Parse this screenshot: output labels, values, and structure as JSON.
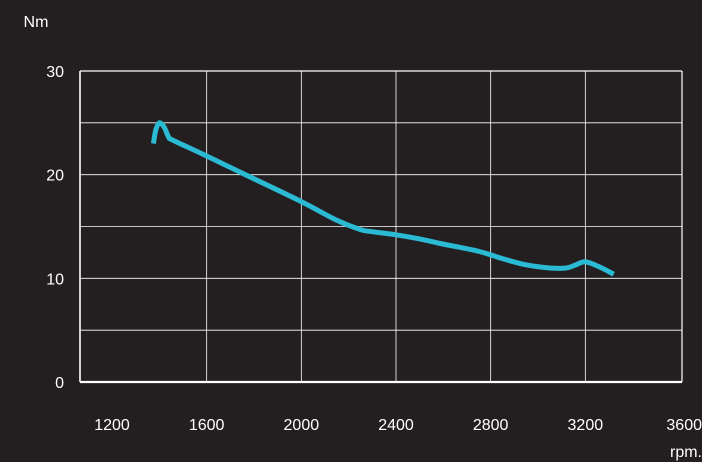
{
  "chart_data": {
    "type": "line",
    "xlabel": "rpm.",
    "ylabel": "Nm",
    "xlim": [
      1200,
      3600
    ],
    "ylim": [
      0,
      30
    ],
    "x_ticks": [
      1200,
      1600,
      2000,
      2400,
      2800,
      3200,
      3600
    ],
    "y_ticks": [
      0,
      10,
      20,
      30
    ],
    "y_gridlines": [
      0,
      5,
      10,
      15,
      20,
      25,
      30
    ],
    "grid": true,
    "colors": {
      "background": "#231f20",
      "grid": "#ffffff",
      "line": "#2bbad3",
      "text": "#ffffff"
    },
    "series": [
      {
        "x": [
          1375,
          1385,
          1400,
          1420,
          1440,
          1460,
          1600,
          1800,
          2000,
          2150,
          2250,
          2300,
          2400,
          2500,
          2600,
          2750,
          2850,
          2950,
          3050,
          3120,
          3160,
          3200,
          3260,
          3320
        ],
        "y": [
          23.0,
          24.3,
          25.0,
          24.6,
          23.6,
          23.3,
          21.8,
          19.6,
          17.4,
          15.6,
          14.7,
          14.5,
          14.2,
          13.8,
          13.3,
          12.6,
          11.9,
          11.3,
          11.0,
          11.0,
          11.3,
          11.6,
          11.1,
          10.4
        ]
      }
    ]
  }
}
